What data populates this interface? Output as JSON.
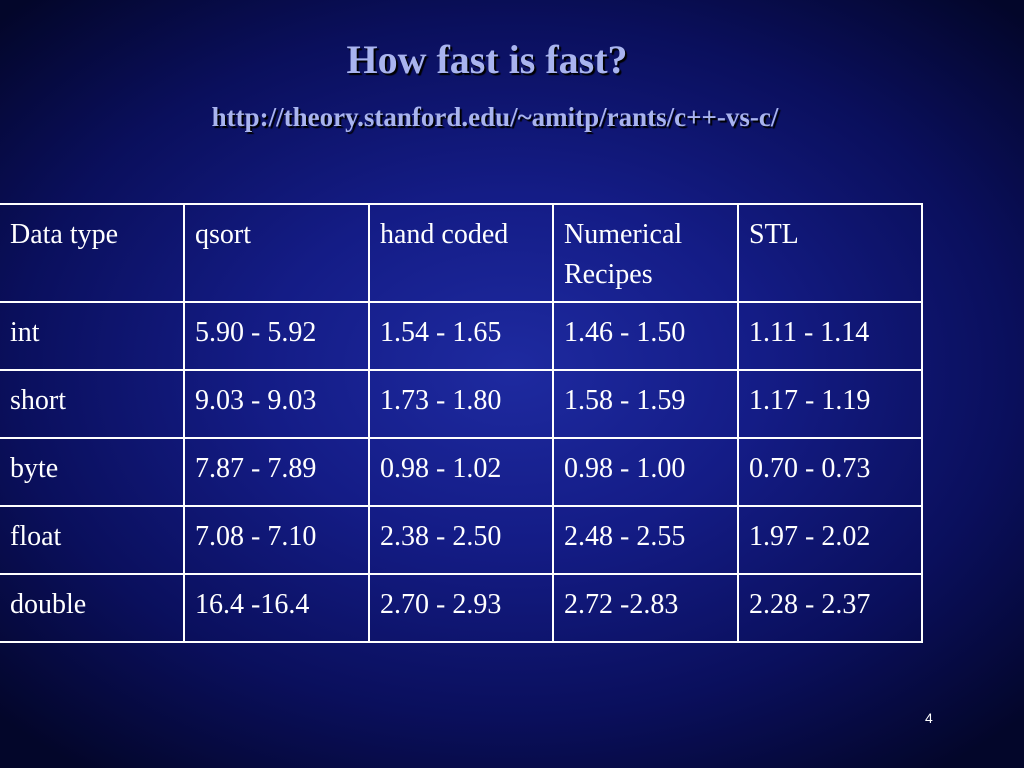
{
  "slide": {
    "title": "How fast is fast?",
    "subtitle": "http://theory.stanford.edu/~amitp/rants/c++-vs-c/",
    "page_number": "4"
  },
  "table": {
    "headers": [
      "Data type",
      "qsort",
      "hand coded",
      "Numerical Recipes",
      "STL"
    ],
    "rows": [
      [
        "int",
        "5.90 - 5.92",
        "1.54 - 1.65",
        "1.46 - 1.50",
        "1.11 - 1.14"
      ],
      [
        "short",
        "9.03 - 9.03",
        "1.73 - 1.80",
        "1.58 - 1.59",
        "1.17 - 1.19"
      ],
      [
        "byte",
        "7.87 - 7.89",
        "0.98 - 1.02",
        "0.98 - 1.00",
        "0.70 - 0.73"
      ],
      [
        "float",
        "7.08 - 7.10",
        "2.38 - 2.50",
        "2.48 - 2.55",
        "1.97 - 2.02"
      ],
      [
        "double",
        "16.4 -16.4",
        "2.70 - 2.93",
        "2.72 -2.83",
        "2.28 - 2.37"
      ]
    ]
  },
  "colors": {
    "background": "#141c86",
    "title_text": "#a9b4ef",
    "table_text": "#ffffff",
    "table_border": "#ffffff"
  }
}
